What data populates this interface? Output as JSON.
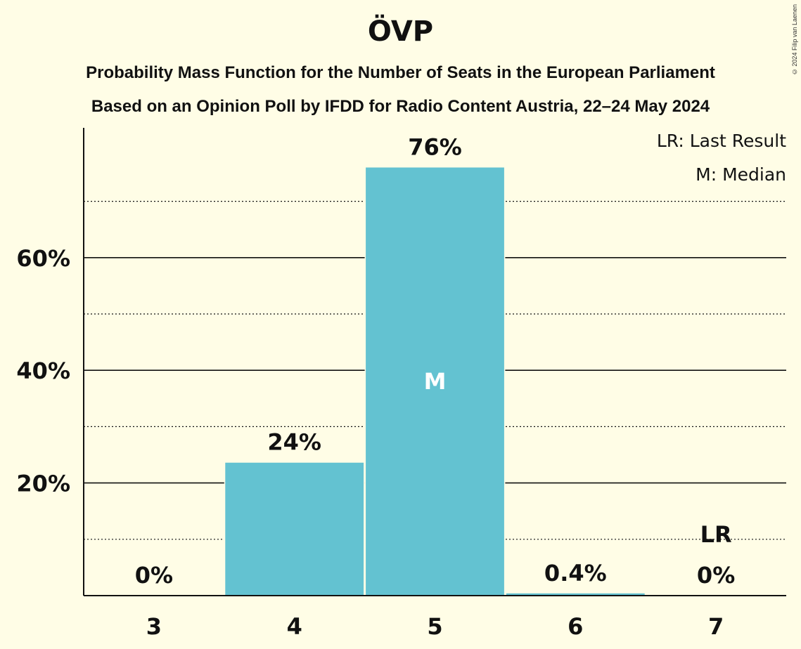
{
  "title": "ÖVP",
  "subtitle1": "Probability Mass Function for the Number of Seats in the European Parliament",
  "subtitle2": "Based on an Opinion Poll by IFDD for Radio Content Austria, 22–24 May 2024",
  "copyright": "© 2024 Filip van Laenen",
  "legend": {
    "last_result": "LR: Last Result",
    "median": "M: Median"
  },
  "colors": {
    "background": "#FFFDE6",
    "bar": "#63C2D1",
    "text": "#111111"
  },
  "chart_data": {
    "type": "bar",
    "categories": [
      "3",
      "4",
      "5",
      "6",
      "7"
    ],
    "values": [
      0,
      23.6,
      76,
      0.4,
      0
    ],
    "value_labels": [
      "0%",
      "24%",
      "76%",
      "0.4%",
      "0%"
    ],
    "median_category": "5",
    "median_marker": "M",
    "last_result_category": "7",
    "last_result_marker": "LR",
    "ylim": [
      0,
      82
    ],
    "yticks": [
      20,
      40,
      60
    ],
    "ytick_labels": [
      "20%",
      "40%",
      "60%"
    ],
    "minor_gridlines": [
      10,
      30,
      50,
      70
    ],
    "legend_position": "top-right"
  }
}
